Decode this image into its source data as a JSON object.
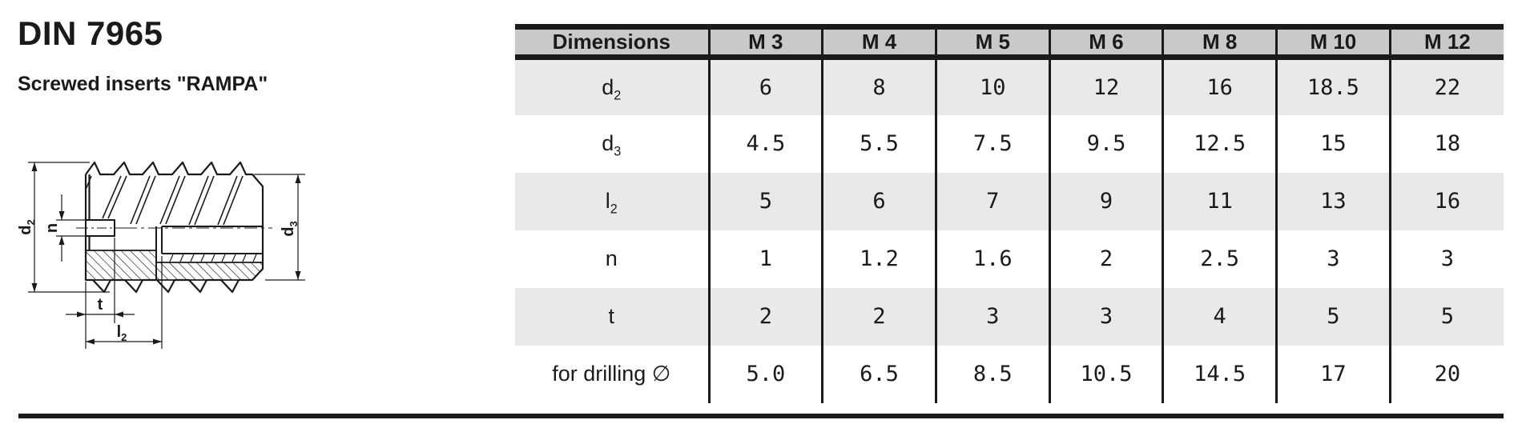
{
  "page": {
    "title": "DIN 7965",
    "subtitle": "Screwed inserts \"RAMPA\""
  },
  "colors": {
    "ink": "#1a1a1a",
    "header_bg": "#c9c9c9",
    "stripe_bg": "#e9e9e9"
  },
  "table": {
    "header": [
      "Dimensions",
      "M 3",
      "M 4",
      "M 5",
      "M 6",
      "M 8",
      "M 10",
      "M 12"
    ],
    "rows": [
      {
        "label": {
          "base": "d",
          "sub": "2"
        },
        "values": [
          "6",
          "8",
          "10",
          "12",
          "16",
          "18.5",
          "22"
        ]
      },
      {
        "label": {
          "base": "d",
          "sub": "3"
        },
        "values": [
          "4.5",
          "5.5",
          "7.5",
          "9.5",
          "12.5",
          "15",
          "18"
        ]
      },
      {
        "label": {
          "base": "l",
          "sub": "2"
        },
        "values": [
          "5",
          "6",
          "7",
          "9",
          "11",
          "13",
          "16"
        ]
      },
      {
        "label": {
          "base": "n",
          "sub": ""
        },
        "values": [
          "1",
          "1.2",
          "1.6",
          "2",
          "2.5",
          "3",
          "3"
        ]
      },
      {
        "label": {
          "base": "t",
          "sub": ""
        },
        "values": [
          "2",
          "2",
          "3",
          "3",
          "4",
          "5",
          "5"
        ]
      },
      {
        "label": {
          "base": "for drilling ∅",
          "sub": ""
        },
        "values": [
          "5.0",
          "6.5",
          "8.5",
          "10.5",
          "14.5",
          "17",
          "20"
        ]
      }
    ]
  },
  "drawing": {
    "labels": {
      "d2": {
        "base": "d",
        "sub": "2"
      },
      "n": {
        "base": "n",
        "sub": ""
      },
      "d3": {
        "base": "d",
        "sub": "3"
      },
      "t": {
        "base": "t",
        "sub": ""
      },
      "l2": {
        "base": "l",
        "sub": "2"
      }
    }
  }
}
